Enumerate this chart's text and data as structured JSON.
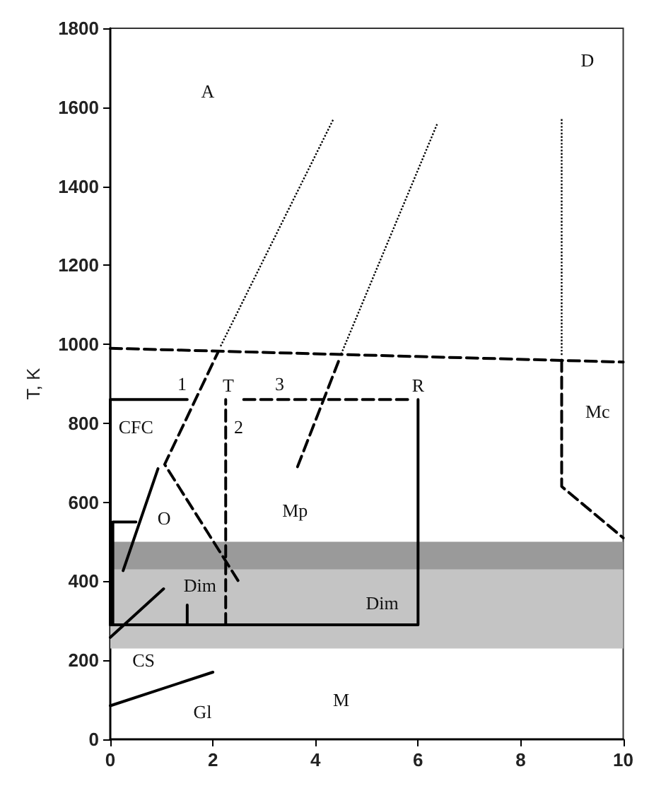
{
  "chart_data": {
    "type": "line",
    "ylabel": "T, K",
    "xlim": [
      0,
      10
    ],
    "ylim": [
      0,
      1800
    ],
    "xticks": [
      0,
      2,
      4,
      6,
      8,
      10
    ],
    "yticks": [
      0,
      200,
      400,
      600,
      800,
      1000,
      1200,
      1400,
      1600,
      1800
    ],
    "grid": false,
    "marker": "none",
    "bands": [
      {
        "axis": "y",
        "from": 230,
        "to": 430,
        "color": "#c4c4c4"
      },
      {
        "axis": "y",
        "from": 430,
        "to": 500,
        "color": "#9a9a9a"
      }
    ],
    "series": [
      {
        "color": "#000000",
        "line_style": "dashed",
        "x": [
          0,
          10
        ],
        "values": [
          990,
          955
        ]
      },
      {
        "color": "#000000",
        "line_style": "dashed",
        "x": [
          2.49,
          1.06,
          2.1
        ],
        "values": [
          402,
          696,
          980
        ]
      },
      {
        "color": "#000000",
        "line_style": "dotted",
        "x": [
          2.15,
          4.35
        ],
        "values": [
          995,
          1570
        ]
      },
      {
        "color": "#000000",
        "line_style": "dashed",
        "x": [
          3.65,
          4.45
        ],
        "values": [
          690,
          957
        ]
      },
      {
        "color": "#000000",
        "line_style": "dotted",
        "x": [
          4.5,
          6.37
        ],
        "values": [
          975,
          1557
        ]
      },
      {
        "color": "#000000",
        "line_style": "dotted",
        "x": [
          8.8,
          8.8
        ],
        "values": [
          1570,
          970
        ]
      },
      {
        "color": "#000000",
        "line_style": "dashed",
        "x": [
          8.8,
          8.8,
          10
        ],
        "values": [
          960,
          640,
          510
        ]
      },
      {
        "color": "#000000",
        "line_style": "solid",
        "x": [
          0.25,
          0.93
        ],
        "values": [
          427,
          685
        ]
      },
      {
        "color": "#000000",
        "line_style": "solid",
        "x": [
          0,
          2
        ],
        "values": [
          85,
          170
        ]
      },
      {
        "color": "#000000",
        "line_style": "solid",
        "x": [
          0,
          1.04
        ],
        "values": [
          258,
          381
        ]
      },
      {
        "color": "#000000",
        "line_style": "solid",
        "x": [
          0,
          0,
          1.5
        ],
        "values": [
          290,
          860,
          860
        ]
      },
      {
        "color": "#000000",
        "line_style": "solid",
        "x": [
          0.05,
          0.05,
          0.5
        ],
        "values": [
          290,
          550,
          550
        ]
      },
      {
        "color": "#000000",
        "line_style": "solid",
        "x": [
          0,
          6,
          6
        ],
        "values": [
          290,
          290,
          860
        ]
      },
      {
        "color": "#000000",
        "line_style": "dashed",
        "x": [
          2.25,
          2.25
        ],
        "values": [
          290,
          860
        ]
      },
      {
        "color": "#000000",
        "line_style": "dashed",
        "x": [
          2.6,
          5.8
        ],
        "values": [
          860,
          860
        ]
      },
      {
        "color": "#000000",
        "line_style": "solid",
        "x": [
          1.5,
          1.5
        ],
        "values": [
          290,
          340
        ]
      }
    ],
    "annotations": [
      "A",
      "Mp",
      "M",
      "Mc",
      "D",
      "CFC",
      "O",
      {
        "text": "T",
        "x": 2.3,
        "y": 860
      },
      {
        "text": "R",
        "x": 6.0,
        "y": 860
      },
      "1",
      "2",
      "3",
      "Dim",
      "Dim",
      "CS",
      "Gl"
    ]
  }
}
